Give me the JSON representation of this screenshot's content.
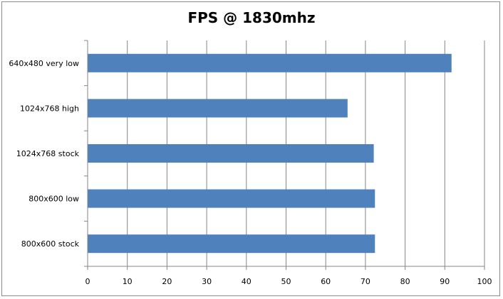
{
  "chart_data": {
    "type": "bar",
    "orientation": "horizontal",
    "title": "FPS @ 1830mhz",
    "xlabel": "",
    "ylabel": "",
    "categories": [
      "640x480 very low",
      "1024x768 high",
      "1024x768 stock",
      "800x600 low",
      "800x600 stock"
    ],
    "values": [
      91.7,
      65.5,
      72.1,
      72.4,
      72.4
    ],
    "xlim": [
      0,
      100
    ],
    "xticks": [
      0,
      10,
      20,
      30,
      40,
      50,
      60,
      70,
      80,
      90,
      100
    ],
    "grid": "vertical",
    "legend": "none",
    "bar_color": "#4f81bd",
    "gridline_color": "#868686"
  }
}
